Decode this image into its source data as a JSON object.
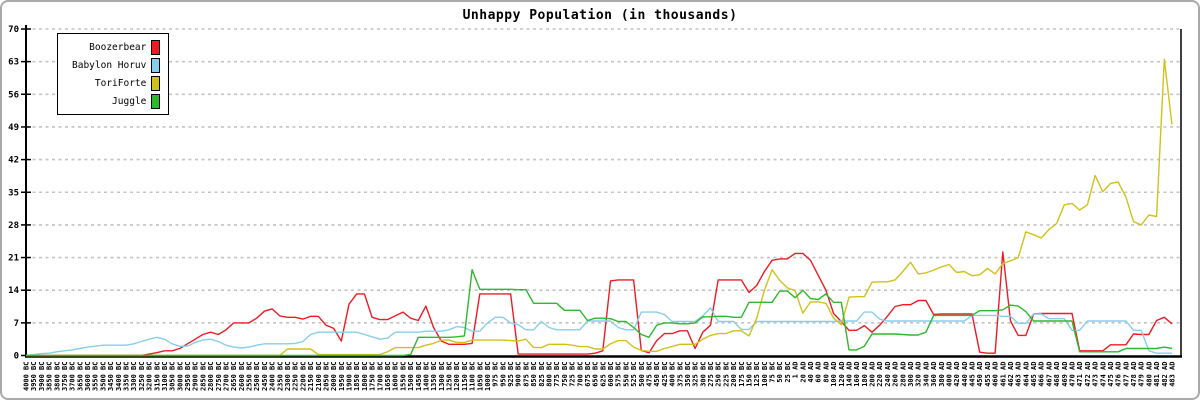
{
  "title": "Unhappy Population (in thousands)",
  "colors": {
    "red": "#ed1c24",
    "skyblue": "#87ceeb",
    "yellow": "#d1c118",
    "green": "#2db82d",
    "grid": "#c4c4c4",
    "axis": "#000000"
  },
  "legend": {
    "items": [
      {
        "label": "Boozerbear",
        "color": "#ed1c24"
      },
      {
        "label": "Babylon Horuv",
        "color": "#87ceeb"
      },
      {
        "label": "ToriForte",
        "color": "#d1c118"
      },
      {
        "label": "Juggle",
        "color": "#2db82d"
      }
    ]
  },
  "chart_data": {
    "type": "line",
    "title": "Unhappy Population (in thousands)",
    "xlabel": "",
    "ylabel": "",
    "ylim": [
      0,
      70
    ],
    "yticks": [
      0,
      7,
      14,
      21,
      28,
      35,
      42,
      49,
      56,
      63,
      70
    ],
    "grid": true,
    "legend_position": "upper-left",
    "x_tick_rotation": 90,
    "categories": [
      "4000 BC",
      "3950 BC",
      "3900 BC",
      "3850 BC",
      "3800 BC",
      "3750 BC",
      "3700 BC",
      "3650 BC",
      "3600 BC",
      "3550 BC",
      "3500 BC",
      "3450 BC",
      "3400 BC",
      "3350 BC",
      "3300 BC",
      "3250 BC",
      "3200 BC",
      "3150 BC",
      "3100 BC",
      "3050 BC",
      "3000 BC",
      "2950 BC",
      "2900 BC",
      "2850 BC",
      "2800 BC",
      "2750 BC",
      "2700 BC",
      "2650 BC",
      "2600 BC",
      "2550 BC",
      "2500 BC",
      "2450 BC",
      "2400 BC",
      "2350 BC",
      "2300 BC",
      "2250 BC",
      "2200 BC",
      "2150 BC",
      "2100 BC",
      "2050 BC",
      "2000 BC",
      "1950 BC",
      "1900 BC",
      "1850 BC",
      "1800 BC",
      "1750 BC",
      "1700 BC",
      "1650 BC",
      "1600 BC",
      "1550 BC",
      "1500 BC",
      "1450 BC",
      "1400 BC",
      "1350 BC",
      "1300 BC",
      "1250 BC",
      "1200 BC",
      "1150 BC",
      "1100 BC",
      "1050 BC",
      "1000 BC",
      "975 BC",
      "950 BC",
      "925 BC",
      "900 BC",
      "875 BC",
      "850 BC",
      "825 BC",
      "800 BC",
      "775 BC",
      "750 BC",
      "725 BC",
      "700 BC",
      "675 BC",
      "650 BC",
      "625 BC",
      "600 BC",
      "575 BC",
      "550 BC",
      "525 BC",
      "500 BC",
      "475 BC",
      "450 BC",
      "425 BC",
      "400 BC",
      "375 BC",
      "350 BC",
      "325 BC",
      "300 BC",
      "275 BC",
      "250 BC",
      "225 BC",
      "200 BC",
      "175 BC",
      "150 BC",
      "125 BC",
      "100 BC",
      "75 BC",
      "50 BC",
      "25 BC",
      "1 AD",
      "20 AD",
      "40 AD",
      "60 AD",
      "80 AD",
      "100 AD",
      "120 AD",
      "140 AD",
      "160 AD",
      "180 AD",
      "200 AD",
      "220 AD",
      "240 AD",
      "260 AD",
      "280 AD",
      "300 AD",
      "320 AD",
      "340 AD",
      "360 AD",
      "380 AD",
      "400 AD",
      "420 AD",
      "440 AD",
      "445 AD",
      "450 AD",
      "455 AD",
      "460 AD",
      "461 AD",
      "462 AD",
      "463 AD",
      "464 AD",
      "465 AD",
      "466 AD",
      "467 AD",
      "468 AD",
      "469 AD",
      "470 AD",
      "471 AD",
      "472 AD",
      "473 AD",
      "474 AD",
      "475 AD",
      "476 AD",
      "477 AD",
      "478 AD",
      "479 AD",
      "480 AD",
      "481 AD",
      "482 AD",
      "483 AD"
    ],
    "series": [
      {
        "name": "Boozerbear",
        "color": "#ed1c24",
        "values": [
          0,
          0,
          0,
          0,
          0,
          0,
          0,
          0,
          0,
          0,
          0,
          0,
          0,
          0,
          0,
          0,
          0.3,
          0.6,
          1,
          1,
          1.5,
          2.5,
          3.5,
          4.5,
          5,
          4.5,
          5.5,
          7,
          7,
          7,
          8,
          9.5,
          10,
          8.5,
          8.2,
          8.2,
          7.8,
          8.4,
          8.4,
          6.5,
          5.8,
          3.1,
          11,
          13.2,
          13.2,
          8.2,
          7.7,
          7.7,
          8.5,
          9.3,
          8,
          7.5,
          10.6,
          6,
          3.1,
          2.4,
          2.4,
          2.4,
          2.6,
          13.2,
          13.2,
          13.2,
          13.2,
          13.2,
          0.3,
          0.3,
          0.3,
          0.3,
          0.3,
          0.3,
          0.3,
          0.3,
          0.3,
          0.3,
          0.5,
          1,
          16,
          16.2,
          16.2,
          16.2,
          1.1,
          0.6,
          3.2,
          4.7,
          4.7,
          5.3,
          5.3,
          1.5,
          5,
          6.5,
          16.2,
          16.2,
          16.2,
          16.2,
          13.5,
          15,
          18,
          20.4,
          20.7,
          20.7,
          21.9,
          21.9,
          20.4,
          17.2,
          14,
          9,
          7.3,
          5.4,
          5.4,
          6.4,
          5,
          6.5,
          8.4,
          10.5,
          10.9,
          10.9,
          11.8,
          11.8,
          8.8,
          8.9,
          8.9,
          8.9,
          8.9,
          8.9,
          0.7,
          0.5,
          0.5,
          22.2,
          7.4,
          4.3,
          4.3,
          8.9,
          9,
          9,
          9,
          9,
          9,
          1,
          1,
          1,
          1,
          2.3,
          2.3,
          2.3,
          4.6,
          4.5,
          4.5,
          7.5,
          8.2,
          6.8
        ]
      },
      {
        "name": "Babylon Horuv",
        "color": "#87ceeb",
        "values": [
          0,
          0.2,
          0.4,
          0.5,
          0.8,
          1,
          1.2,
          1.5,
          1.8,
          2,
          2.2,
          2.2,
          2.2,
          2.2,
          2.5,
          3,
          3.5,
          3.9,
          3.5,
          2.5,
          2,
          2,
          2.8,
          3.3,
          3.5,
          3,
          2.2,
          1.8,
          1.6,
          1.8,
          2.2,
          2.5,
          2.5,
          2.5,
          2.5,
          2.6,
          3,
          4.5,
          5,
          5,
          5,
          5,
          5,
          5,
          4.5,
          4,
          3.5,
          3.7,
          5,
          5,
          5,
          5,
          5.2,
          5.2,
          5.2,
          5.5,
          6.2,
          6,
          5.2,
          5.2,
          7,
          8.2,
          8.2,
          7,
          6.6,
          5.5,
          5.5,
          7.3,
          6,
          5.5,
          5.5,
          5.5,
          5.5,
          7.4,
          7.4,
          7.4,
          7.4,
          6,
          5.5,
          5.5,
          9.3,
          9.3,
          9.3,
          8.8,
          7.3,
          7.3,
          7.3,
          7.3,
          8.5,
          10.2,
          7.3,
          7.3,
          7.3,
          5.6,
          5.6,
          7.3,
          7.3,
          7.3,
          7.3,
          7.3,
          7.3,
          7.3,
          7.3,
          7.3,
          7.3,
          7.3,
          7.4,
          7.4,
          7.4,
          9.3,
          9.3,
          7.8,
          7.4,
          7.4,
          7.4,
          7.4,
          7.4,
          7.4,
          7.4,
          7.4,
          7.4,
          7.4,
          7.4,
          8.6,
          8.6,
          8.6,
          8.6,
          8.4,
          8.4,
          6.9,
          6.9,
          8.9,
          8.9,
          7.9,
          7.9,
          7.9,
          5.4,
          5.4,
          7.4,
          7.4,
          7.4,
          7.4,
          7.4,
          7.4,
          5.4,
          5.4,
          1,
          0.5,
          0.5,
          0.5
        ]
      },
      {
        "name": "ToriForte",
        "color": "#d1c118",
        "values": [
          0,
          0,
          0,
          0,
          0,
          0,
          0,
          0,
          0,
          0,
          0,
          0,
          0,
          0,
          0,
          0,
          0,
          0,
          0,
          0,
          0,
          0,
          0,
          0,
          0,
          0,
          0,
          0,
          0,
          0,
          0,
          0,
          0,
          0,
          1.4,
          1.4,
          1.4,
          1.4,
          0.2,
          0.2,
          0.2,
          0.2,
          0.2,
          0.2,
          0.2,
          0.2,
          0.2,
          0.8,
          1.7,
          1.7,
          1.7,
          1.7,
          2.2,
          2.6,
          3.3,
          3.3,
          2.8,
          2.8,
          3.3,
          3.3,
          3.3,
          3.3,
          3.3,
          3.2,
          3.1,
          3.5,
          1.7,
          1.7,
          2.4,
          2.4,
          2.4,
          2.2,
          1.9,
          1.9,
          1.4,
          1.4,
          2.5,
          3.2,
          3.2,
          1.8,
          1.1,
          0.9,
          0.9,
          1.5,
          1.9,
          2.4,
          2.4,
          2.4,
          3.5,
          4.3,
          4.7,
          4.7,
          5.3,
          5.3,
          4.2,
          8,
          14,
          18.4,
          16.1,
          14.5,
          13.9,
          9.1,
          11.5,
          11.5,
          11.2,
          8,
          6.6,
          12.5,
          12.6,
          12.6,
          15.7,
          15.8,
          15.8,
          16.2,
          18,
          20,
          17.5,
          17.7,
          18.3,
          19,
          19.5,
          17.8,
          18,
          17.1,
          17.3,
          18.7,
          17.5,
          19.7,
          20.3,
          21,
          26.5,
          25.9,
          25.2,
          27,
          28.3,
          32.3,
          32.6,
          31.2,
          32.3,
          38.6,
          35.1,
          36.9,
          37.2,
          34,
          28.7,
          28,
          30.1,
          29.8,
          63.5,
          49.5
        ]
      },
      {
        "name": "Juggle",
        "color": "#2db82d",
        "values": [
          0,
          0,
          0,
          0,
          0,
          0,
          0,
          0,
          0,
          0,
          0,
          0,
          0,
          0,
          0,
          0,
          0,
          0,
          0,
          0,
          0,
          0,
          0,
          0,
          0,
          0,
          0,
          0,
          0,
          0,
          0,
          0,
          0,
          0,
          0,
          0,
          0,
          0,
          0,
          0,
          0,
          0,
          0,
          0,
          0,
          0,
          0,
          0,
          0,
          0,
          0.2,
          3.9,
          3.9,
          3.9,
          3.9,
          3.9,
          4,
          4.2,
          18.4,
          14.2,
          14.2,
          14.2,
          14.2,
          14.2,
          14.1,
          14.1,
          11.2,
          11.2,
          11.2,
          11.2,
          9.7,
          9.7,
          9.7,
          7.5,
          8,
          8,
          7.9,
          7.3,
          7.3,
          6,
          4.5,
          3.9,
          6.5,
          7,
          7,
          6.8,
          6.8,
          7,
          8.3,
          8.3,
          8.4,
          8.4,
          8.2,
          8.2,
          11.4,
          11.4,
          11.4,
          11.4,
          13.8,
          13.8,
          12.4,
          14,
          12.2,
          12,
          13.2,
          11.4,
          11.4,
          1.2,
          1.2,
          2,
          4.6,
          4.6,
          4.6,
          4.6,
          4.5,
          4.4,
          4.4,
          5,
          8.6,
          8.6,
          8.6,
          8.6,
          8.6,
          8.6,
          9.6,
          9.6,
          9.6,
          9.8,
          10.8,
          10.6,
          9.4,
          7.4,
          7.4,
          7.4,
          7.4,
          7.4,
          7.4,
          0.8,
          0.8,
          0.8,
          0.8,
          0.8,
          0.8,
          1.5,
          1.5,
          1.5,
          1.5,
          1.5,
          1.8,
          1.5
        ]
      }
    ]
  }
}
